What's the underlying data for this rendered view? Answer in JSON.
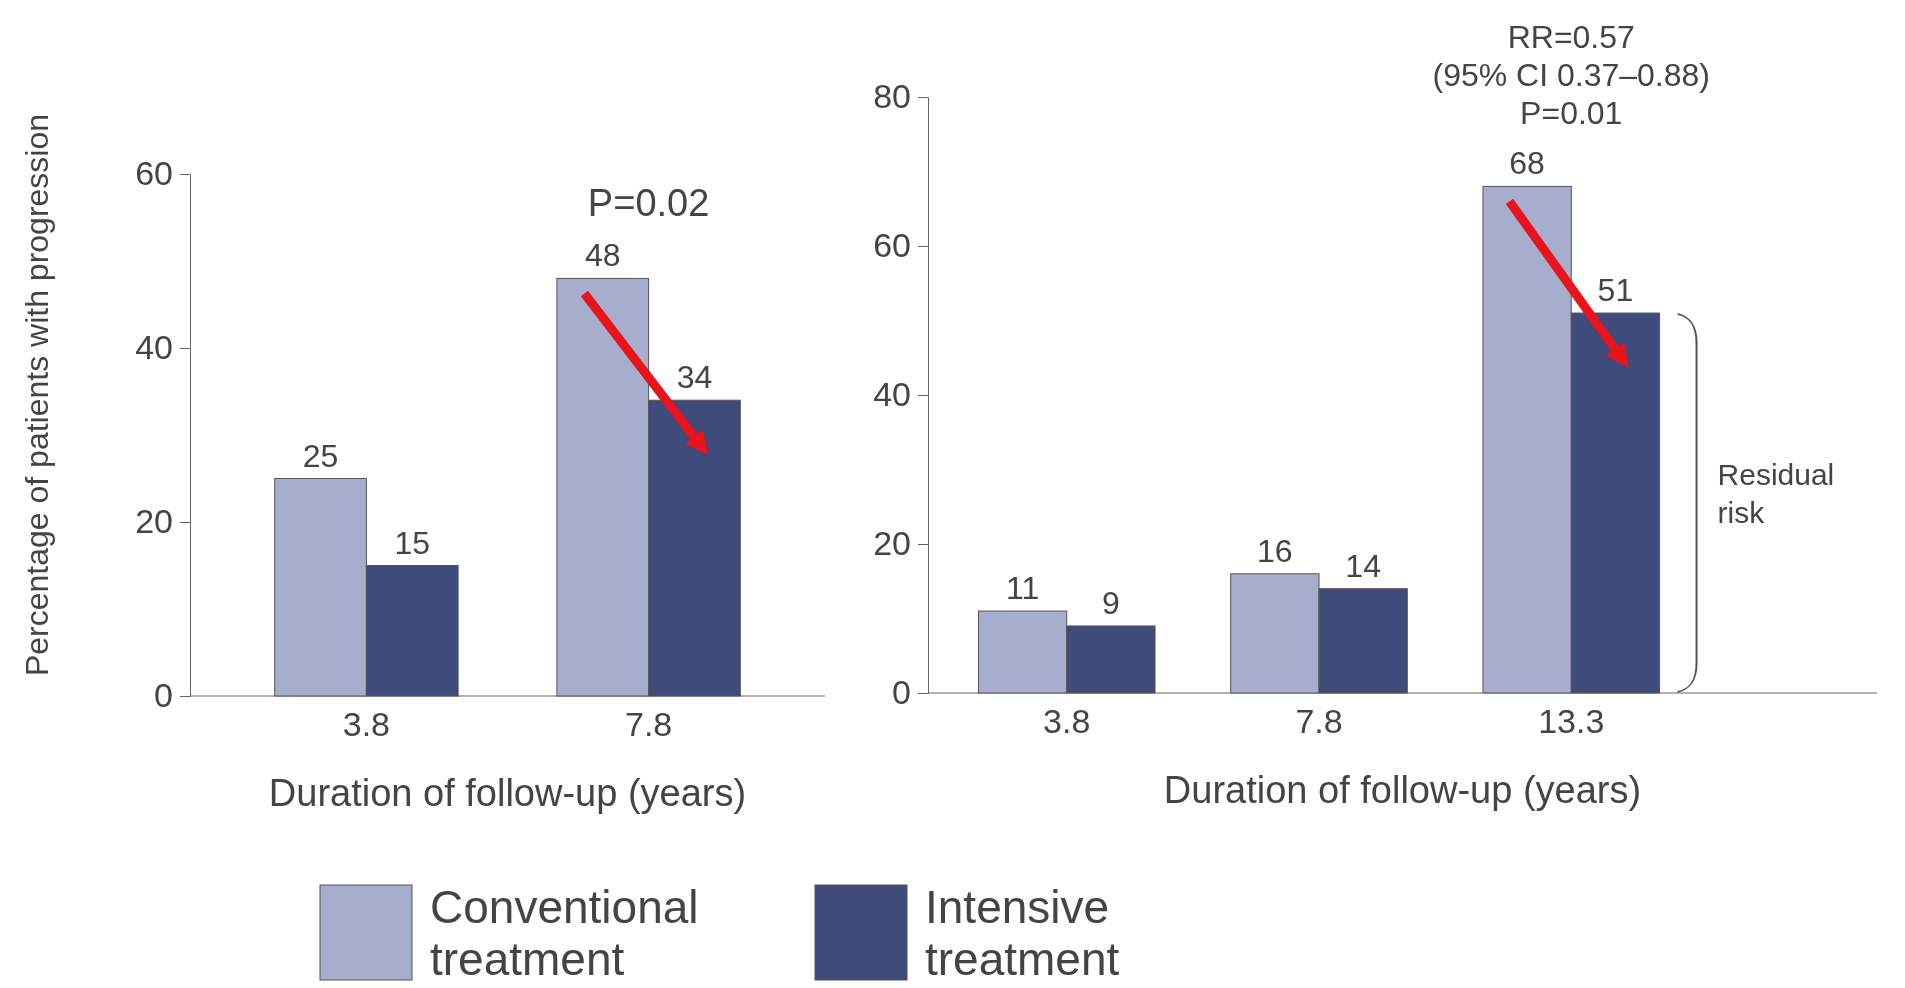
{
  "chart_data": [
    {
      "type": "bar",
      "ylabel": "Percentage of patients with progression",
      "xlabel": "Duration of follow-up (years)",
      "categories": [
        "3.8",
        "7.8"
      ],
      "ylim": [
        0,
        60
      ],
      "yticks": [
        0,
        20,
        40,
        60
      ],
      "data_labels": true,
      "legend": "bottom",
      "annotations": [
        "P=0.02"
      ],
      "series": [
        {
          "name": "Conventional treatment",
          "color": "#a7aecd",
          "values": [
            25,
            48
          ]
        },
        {
          "name": "Intensive treatment",
          "color": "#3f4b7a",
          "values": [
            15,
            34
          ]
        }
      ]
    },
    {
      "type": "bar",
      "xlabel": "Duration of follow-up (years)",
      "categories": [
        "3.8",
        "7.8",
        "13.3"
      ],
      "ylim": [
        0,
        80
      ],
      "yticks": [
        0,
        20,
        40,
        60,
        80
      ],
      "data_labels": true,
      "annotations": [
        "RR=0.57",
        "(95% CI 0.37–0.88)",
        "P=0.01",
        "Residual risk"
      ],
      "series": [
        {
          "color": "#a7aecd",
          "values": [
            11,
            16,
            68
          ]
        },
        {
          "color": "#3f4b7a",
          "values": [
            9,
            14,
            51
          ]
        }
      ]
    }
  ]
}
